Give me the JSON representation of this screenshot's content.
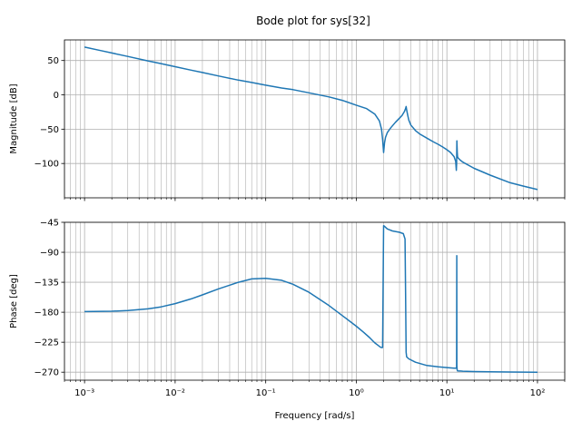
{
  "chart_data": [
    {
      "type": "line",
      "title": "Bode plot for sys[32]",
      "xlabel": "",
      "ylabel": "Magnitude [dB]",
      "xscale": "log",
      "xlim": [
        0.0006,
        200
      ],
      "ylim": [
        -150,
        80
      ],
      "yticks": [
        50,
        0,
        -50,
        -100
      ],
      "ytick_labels": [
        "50",
        "0",
        "−50",
        "−100"
      ],
      "grid": true,
      "color": "#1f77b4",
      "series": [
        {
          "x": [
            0.001,
            0.0015,
            0.002,
            0.003,
            0.005,
            0.007,
            0.01,
            0.015,
            0.02,
            0.03,
            0.05,
            0.07,
            0.1,
            0.15,
            0.2,
            0.3,
            0.5,
            0.7,
            1.0,
            1.3,
            1.6,
            1.8,
            1.9,
            1.95,
            2.0,
            2.05,
            2.1,
            2.2,
            2.4,
            2.7,
            3.0,
            3.2,
            3.4,
            3.5,
            3.55,
            3.6,
            3.7,
            3.8,
            4.0,
            4.5,
            5.0,
            6.0,
            7.0,
            8.0,
            9.0,
            10.0,
            11.0,
            12.0,
            12.5,
            12.7,
            12.8,
            12.9,
            13.0,
            13.1,
            13.3,
            14.0,
            15.0,
            20.0,
            30.0,
            50.0,
            70.0,
            100.0
          ],
          "y": [
            69.5,
            64.5,
            61,
            56,
            49.5,
            45.5,
            41,
            36,
            32.5,
            27.5,
            21.5,
            18,
            14,
            10,
            7.5,
            3,
            -3,
            -8,
            -15,
            -20,
            -28,
            -38,
            -50,
            -65,
            -84,
            -70,
            -62,
            -55,
            -48,
            -40,
            -34,
            -30,
            -24,
            -20,
            -17,
            -22,
            -30,
            -37,
            -44,
            -52,
            -57,
            -63,
            -68,
            -72,
            -76,
            -80,
            -84,
            -90,
            -97,
            -110,
            -101,
            -67,
            -83,
            -90,
            -92,
            -95,
            -98,
            -107,
            -117,
            -128,
            -133,
            -138
          ]
        }
      ]
    },
    {
      "type": "line",
      "title": "",
      "xlabel": "Frequency [rad/s]",
      "ylabel": "Phase [deg]",
      "xscale": "log",
      "xlim": [
        0.0006,
        200
      ],
      "ylim": [
        -282,
        -45
      ],
      "yticks": [
        -45,
        -90,
        -135,
        -180,
        -225,
        -270
      ],
      "ytick_labels": [
        "−45",
        "−90",
        "−135",
        "−180",
        "−225",
        "−270"
      ],
      "xtick_labels": [
        "10⁻³",
        "10⁻²",
        "10⁻¹",
        "10⁰",
        "10¹",
        "10²"
      ],
      "grid": true,
      "color": "#1f77b4",
      "series": [
        {
          "x": [
            0.001,
            0.002,
            0.003,
            0.005,
            0.007,
            0.01,
            0.015,
            0.02,
            0.03,
            0.05,
            0.07,
            0.1,
            0.15,
            0.2,
            0.3,
            0.5,
            0.7,
            1.0,
            1.2,
            1.4,
            1.6,
            1.75,
            1.85,
            1.9,
            1.95,
            2.0,
            2.05,
            2.2,
            2.5,
            3.0,
            3.3,
            3.45,
            3.5,
            3.55,
            3.6,
            3.8,
            4.5,
            6.0,
            8.0,
            10.0,
            12.0,
            12.8,
            12.85,
            12.9,
            12.95,
            13.0,
            13.1,
            15.0,
            20.0,
            30.0,
            50.0,
            100.0
          ],
          "y": [
            -179,
            -178.5,
            -177.5,
            -175,
            -172,
            -167,
            -160,
            -154,
            -145,
            -135,
            -130,
            -129,
            -132,
            -138,
            -150,
            -170,
            -185,
            -201,
            -210,
            -218,
            -226,
            -230,
            -232.5,
            -233,
            -233,
            -50,
            -51,
            -55,
            -58,
            -60,
            -62,
            -70,
            -150,
            -240,
            -247,
            -250,
            -255,
            -260,
            -262,
            -263,
            -264,
            -264,
            -95,
            -260,
            -265,
            -267,
            -268,
            -268.5,
            -269,
            -269.5,
            -269.7,
            -270
          ]
        }
      ]
    }
  ]
}
